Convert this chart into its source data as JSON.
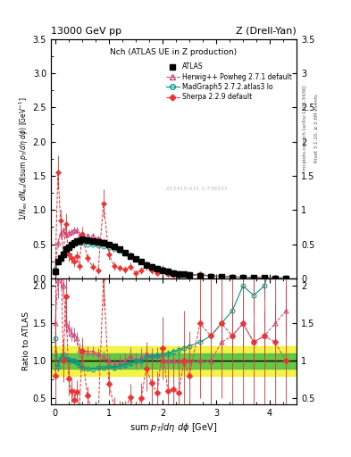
{
  "title_top": "13000 GeV pp",
  "title_right": "Z (Drell-Yan)",
  "plot_title": "Nch (ATLAS UE in Z production)",
  "xlabel": "sum p_{T}/d\\eta d\\phi  [GeV]",
  "ylabel_main": "1/N_{ev} dN_{ev}/dsum p_{T}/d\\eta d\\phi  [GeV]$^{-1}$",
  "ylabel_ratio": "Ratio to ATLAS",
  "xlim": [
    -0.08,
    4.5
  ],
  "ylim_main": [
    0,
    3.5
  ],
  "ylim_ratio": [
    0.42,
    2.1
  ],
  "atlas_x": [
    0.0,
    0.05,
    0.1,
    0.15,
    0.2,
    0.25,
    0.3,
    0.35,
    0.4,
    0.45,
    0.5,
    0.6,
    0.7,
    0.8,
    0.9,
    1.0,
    1.1,
    1.2,
    1.3,
    1.4,
    1.5,
    1.6,
    1.7,
    1.8,
    1.9,
    2.0,
    2.1,
    2.2,
    2.3,
    2.4,
    2.5,
    2.7,
    2.9,
    3.1,
    3.3,
    3.5,
    3.7,
    3.9,
    4.1,
    4.3
  ],
  "atlas_y": [
    0.1,
    0.25,
    0.3,
    0.35,
    0.43,
    0.46,
    0.5,
    0.52,
    0.54,
    0.55,
    0.57,
    0.56,
    0.55,
    0.53,
    0.52,
    0.5,
    0.47,
    0.43,
    0.38,
    0.33,
    0.28,
    0.24,
    0.2,
    0.17,
    0.14,
    0.12,
    0.1,
    0.08,
    0.07,
    0.06,
    0.05,
    0.04,
    0.03,
    0.02,
    0.015,
    0.01,
    0.008,
    0.006,
    0.004,
    0.003
  ],
  "atlas_yerr": [
    0.02,
    0.03,
    0.03,
    0.03,
    0.03,
    0.03,
    0.03,
    0.03,
    0.03,
    0.03,
    0.03,
    0.02,
    0.02,
    0.02,
    0.02,
    0.02,
    0.02,
    0.02,
    0.02,
    0.02,
    0.015,
    0.015,
    0.012,
    0.01,
    0.01,
    0.008,
    0.007,
    0.006,
    0.005,
    0.005,
    0.004,
    0.003,
    0.003,
    0.002,
    0.002,
    0.002,
    0.002,
    0.002,
    0.001,
    0.001
  ],
  "herwig_x": [
    0.0,
    0.05,
    0.1,
    0.15,
    0.2,
    0.25,
    0.3,
    0.35,
    0.4,
    0.45,
    0.5,
    0.6,
    0.7,
    0.8,
    0.9,
    1.0,
    1.1,
    1.2,
    1.3,
    1.4,
    1.5,
    1.6,
    1.7,
    1.8,
    1.9,
    2.0,
    2.1,
    2.2,
    2.3,
    2.4,
    2.5,
    2.7,
    2.9,
    3.1,
    3.3,
    3.5,
    3.7,
    3.9,
    4.1,
    4.3
  ],
  "herwig_y": [
    0.15,
    0.52,
    0.65,
    0.7,
    0.64,
    0.66,
    0.68,
    0.7,
    0.7,
    0.63,
    0.65,
    0.63,
    0.62,
    0.58,
    0.55,
    0.5,
    0.45,
    0.42,
    0.38,
    0.35,
    0.28,
    0.25,
    0.22,
    0.18,
    0.15,
    0.12,
    0.1,
    0.08,
    0.07,
    0.06,
    0.05,
    0.04,
    0.03,
    0.025,
    0.02,
    0.015,
    0.01,
    0.008,
    0.006,
    0.005
  ],
  "herwig_yerr": [
    0.04,
    0.06,
    0.06,
    0.06,
    0.05,
    0.05,
    0.05,
    0.05,
    0.05,
    0.05,
    0.05,
    0.04,
    0.04,
    0.04,
    0.04,
    0.04,
    0.04,
    0.04,
    0.04,
    0.04,
    0.03,
    0.03,
    0.03,
    0.02,
    0.015,
    0.012,
    0.01,
    0.009,
    0.008,
    0.007,
    0.006,
    0.005,
    0.004,
    0.004,
    0.003,
    0.003,
    0.002,
    0.002,
    0.001,
    0.001
  ],
  "madgraph_x": [
    0.0,
    0.05,
    0.1,
    0.15,
    0.2,
    0.25,
    0.3,
    0.35,
    0.4,
    0.45,
    0.5,
    0.6,
    0.7,
    0.8,
    0.9,
    1.0,
    1.1,
    1.2,
    1.3,
    1.4,
    1.5,
    1.6,
    1.7,
    1.8,
    1.9,
    2.0,
    2.1,
    2.2,
    2.3,
    2.4,
    2.5,
    2.7,
    2.9,
    3.1,
    3.3,
    3.5,
    3.7,
    3.9,
    4.1,
    4.3
  ],
  "madgraph_y": [
    0.13,
    0.23,
    0.31,
    0.38,
    0.44,
    0.47,
    0.5,
    0.52,
    0.53,
    0.52,
    0.52,
    0.5,
    0.49,
    0.48,
    0.47,
    0.46,
    0.43,
    0.4,
    0.36,
    0.32,
    0.28,
    0.24,
    0.21,
    0.18,
    0.15,
    0.13,
    0.11,
    0.09,
    0.08,
    0.07,
    0.06,
    0.05,
    0.04,
    0.03,
    0.025,
    0.02,
    0.015,
    0.012,
    0.01,
    0.008
  ],
  "madgraph_yerr": [
    0.015,
    0.015,
    0.015,
    0.015,
    0.015,
    0.015,
    0.015,
    0.015,
    0.015,
    0.015,
    0.015,
    0.012,
    0.012,
    0.012,
    0.012,
    0.012,
    0.012,
    0.012,
    0.012,
    0.012,
    0.01,
    0.008,
    0.008,
    0.007,
    0.007,
    0.006,
    0.005,
    0.004,
    0.004,
    0.003,
    0.003,
    0.003,
    0.002,
    0.002,
    0.002,
    0.002,
    0.002,
    0.001,
    0.001,
    0.001
  ],
  "sherpa_x": [
    0.0,
    0.05,
    0.1,
    0.15,
    0.2,
    0.25,
    0.3,
    0.35,
    0.4,
    0.45,
    0.5,
    0.6,
    0.7,
    0.8,
    0.9,
    1.0,
    1.1,
    1.2,
    1.3,
    1.4,
    1.5,
    1.6,
    1.7,
    1.8,
    1.9,
    2.0,
    2.1,
    2.2,
    2.3,
    2.4,
    2.5,
    2.7,
    2.9,
    3.1,
    3.3,
    3.5,
    3.7,
    3.9,
    4.1,
    4.3
  ],
  "sherpa_y": [
    0.08,
    1.55,
    0.85,
    0.35,
    0.8,
    0.35,
    0.3,
    0.25,
    0.32,
    0.18,
    0.65,
    0.3,
    0.17,
    0.12,
    1.1,
    0.35,
    0.18,
    0.15,
    0.13,
    0.17,
    0.08,
    0.12,
    0.18,
    0.12,
    0.08,
    0.14,
    0.06,
    0.05,
    0.04,
    0.06,
    0.04,
    0.06,
    0.04,
    0.03,
    0.02,
    0.015,
    0.01,
    0.008,
    0.005,
    0.003
  ],
  "sherpa_yerr": [
    0.05,
    0.25,
    0.15,
    0.1,
    0.15,
    0.1,
    0.08,
    0.08,
    0.08,
    0.07,
    0.1,
    0.07,
    0.06,
    0.05,
    0.2,
    0.08,
    0.06,
    0.05,
    0.05,
    0.06,
    0.04,
    0.05,
    0.06,
    0.05,
    0.04,
    0.05,
    0.03,
    0.03,
    0.03,
    0.04,
    0.03,
    0.04,
    0.03,
    0.02,
    0.015,
    0.012,
    0.01,
    0.008,
    0.006,
    0.004
  ],
  "atlas_color": "#000000",
  "herwig_color": "#cc4477",
  "madgraph_color": "#009988",
  "sherpa_color": "#ee3333",
  "band_yellow": "#eeee00",
  "band_green": "#44bb44",
  "watermark": "AT2415-031 1.736531",
  "xticks": [
    0,
    1,
    2,
    3,
    4
  ],
  "yticks_main": [
    0.0,
    0.5,
    1.0,
    1.5,
    2.0,
    2.5,
    3.0,
    3.5
  ],
  "yticks_ratio": [
    0.5,
    1.0,
    1.5,
    2.0
  ]
}
